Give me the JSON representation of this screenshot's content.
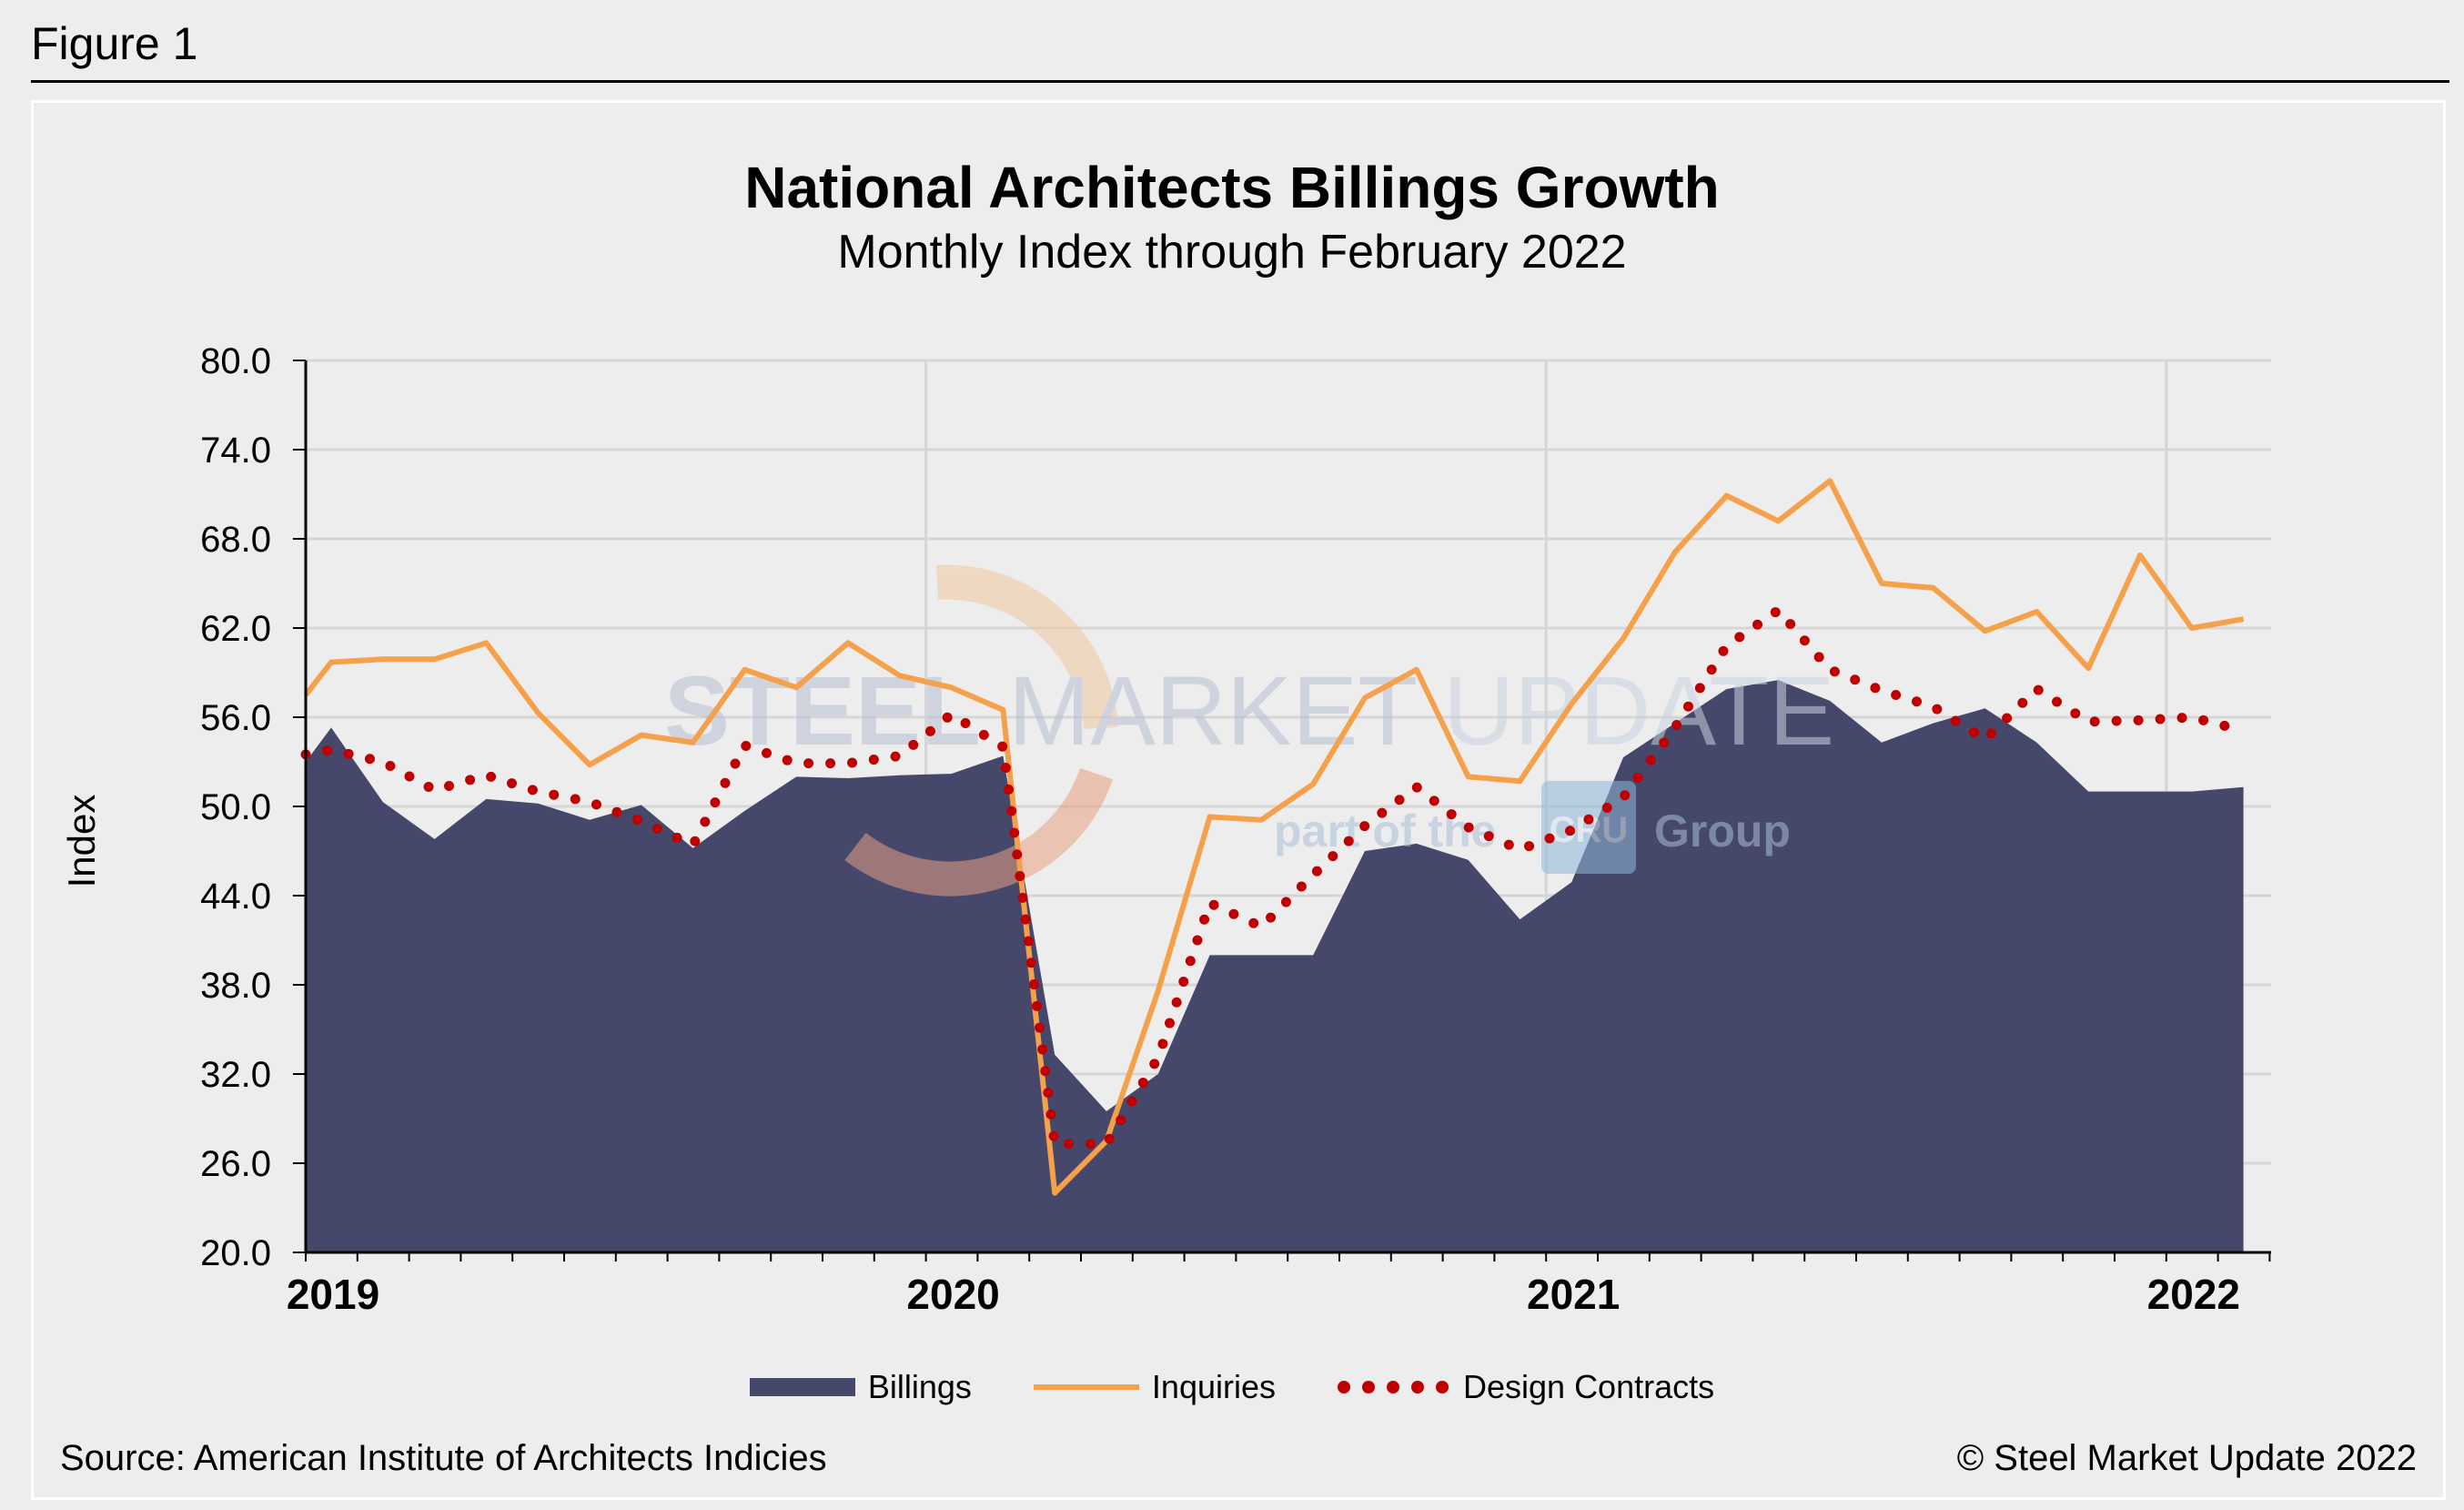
{
  "figure_label": "Figure 1",
  "source": "Source: American Institute of Architects Indicies",
  "copyright": "© Steel Market Update 2022",
  "watermark": {
    "main_bold": "STEEL",
    "main_regular": " MARKET",
    "main_light": " UPDATE",
    "sub_left": "part of the",
    "sub_logo": "CRU",
    "sub_right": "Group"
  },
  "colors": {
    "billings": "#46486b",
    "inquiries": "#f5a04a",
    "design_contracts": "#c00000",
    "grid": "#d6d6d6",
    "background": "#ededed"
  },
  "chart_data": {
    "type": "area",
    "title": "National Architects Billings Growth",
    "subtitle": "Monthly Index through February 2022",
    "ylabel": "Index",
    "xlabel": "",
    "ylim": [
      20,
      80
    ],
    "yticks": [
      "80.0",
      "74.0",
      "68.0",
      "62.0",
      "56.0",
      "50.0",
      "44.0",
      "38.0",
      "32.0",
      "26.0",
      "20.0"
    ],
    "year_labels": [
      "2019",
      "2020",
      "2021",
      "2022"
    ],
    "grid": true,
    "legend_position": "bottom",
    "x": [
      "2019-01",
      "2019-02",
      "2019-03",
      "2019-04",
      "2019-05",
      "2019-06",
      "2019-07",
      "2019-08",
      "2019-09",
      "2019-10",
      "2019-11",
      "2019-12",
      "2020-01",
      "2020-02",
      "2020-03",
      "2020-04",
      "2020-05",
      "2020-06",
      "2020-07",
      "2020-08",
      "2020-09",
      "2020-10",
      "2020-11",
      "2020-12",
      "2021-01",
      "2021-02",
      "2021-03",
      "2021-04",
      "2021-05",
      "2021-06",
      "2021-07",
      "2021-08",
      "2021-09",
      "2021-10",
      "2021-11",
      "2021-12",
      "2022-01",
      "2022-02"
    ],
    "series": [
      {
        "name": "Billings",
        "style": "area",
        "values": [
          55.3,
          50.3,
          47.8,
          50.5,
          50.2,
          49.1,
          50.1,
          47.2,
          49.7,
          52.0,
          51.9,
          52.1,
          52.2,
          53.4,
          33.3,
          29.5,
          32.0,
          40.0,
          40.0,
          40.0,
          47.0,
          47.5,
          46.4,
          42.4,
          44.9,
          53.3,
          55.6,
          57.9,
          58.5,
          57.1,
          54.3,
          55.6,
          56.6,
          54.3,
          51.0,
          51.0,
          51.0,
          51.3
        ]
      },
      {
        "name": "Inquiries",
        "style": "line",
        "values": [
          59.7,
          59.9,
          59.9,
          61.0,
          56.3,
          52.8,
          54.8,
          54.3,
          59.2,
          58.0,
          61.0,
          58.8,
          58.0,
          56.5,
          24.0,
          27.5,
          37.6,
          49.3,
          49.1,
          51.5,
          57.3,
          59.2,
          52.0,
          51.7,
          56.9,
          61.3,
          67.1,
          70.9,
          69.2,
          71.9,
          65.0,
          64.7,
          61.8,
          63.1,
          59.3,
          66.9,
          62.0,
          62.6
        ]
      },
      {
        "name": "Design Contracts",
        "style": "dotted",
        "values": [
          53.8,
          53.0,
          51.1,
          52.1,
          51.0,
          50.3,
          49.0,
          47.4,
          54.1,
          52.9,
          52.9,
          53.4,
          56.2,
          54.0,
          27.3,
          27.3,
          33.1,
          43.5,
          41.9,
          45.4,
          48.7,
          51.3,
          48.6,
          47.1,
          48.4,
          50.6,
          55.3,
          60.8,
          63.2,
          59.2,
          57.8,
          56.7,
          54.5,
          57.9,
          55.7,
          55.8,
          56.0,
          55.1
        ]
      }
    ]
  }
}
